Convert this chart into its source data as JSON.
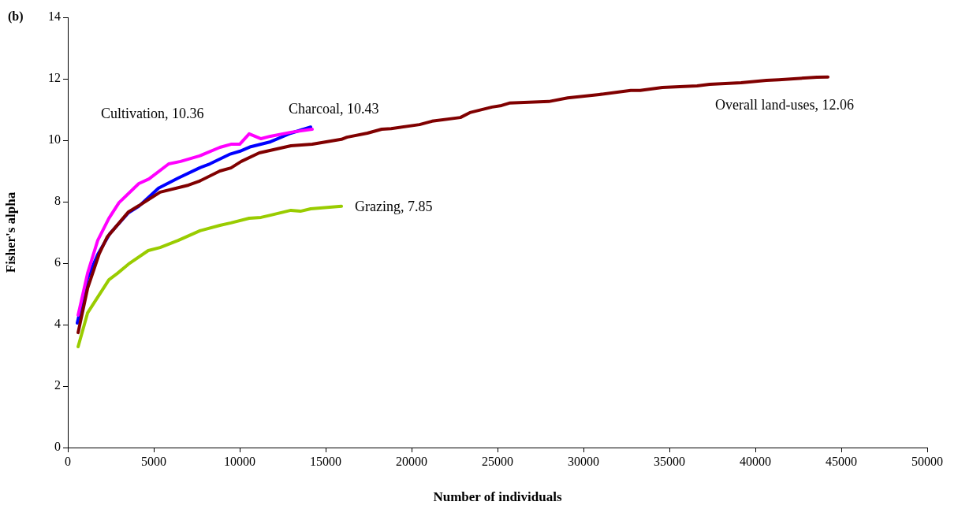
{
  "chart_data": {
    "type": "line",
    "title": "(b)",
    "xlabel": "Number of individuals",
    "ylabel": "Fisher's alpha",
    "xlim": [
      0,
      50000
    ],
    "xticks": [
      0,
      5000,
      10000,
      15000,
      20000,
      25000,
      30000,
      35000,
      40000,
      45000,
      50000
    ],
    "ylim": [
      0,
      14
    ],
    "yticks": [
      0,
      2,
      4,
      6,
      8,
      10,
      12,
      14
    ],
    "grid": false,
    "legend": false,
    "line_style": "solid",
    "series": [
      {
        "name": "Overall land-uses, 12.06",
        "color": "#800000",
        "x": [
          600,
          1150,
          1830,
          2290,
          3530,
          4130,
          5370,
          7020,
          7660,
          8850,
          9490,
          10090,
          11140,
          12980,
          14220,
          15920,
          16240,
          17430,
          18260,
          18810,
          20460,
          21190,
          22840,
          23390,
          24680,
          25230,
          25690,
          27980,
          29080,
          30920,
          32750,
          33300,
          34590,
          36610,
          37340,
          39170,
          40640,
          41370,
          43580,
          44220
        ],
        "values": [
          3.74,
          5.18,
          6.31,
          6.85,
          7.67,
          7.87,
          8.31,
          8.54,
          8.67,
          9.0,
          9.1,
          9.31,
          9.59,
          9.82,
          9.87,
          10.03,
          10.1,
          10.23,
          10.36,
          10.38,
          10.51,
          10.62,
          10.74,
          10.9,
          11.08,
          11.13,
          11.21,
          11.26,
          11.38,
          11.49,
          11.62,
          11.62,
          11.72,
          11.77,
          11.82,
          11.87,
          11.95,
          11.97,
          12.05,
          12.06
        ]
      },
      {
        "name": "Grazing, 7.85",
        "color": "#99cc00",
        "x": [
          600,
          1150,
          2390,
          2890,
          3530,
          4680,
          5370,
          6420,
          7660,
          8850,
          9490,
          10550,
          11240,
          11790,
          12980,
          13530,
          14130,
          15920
        ],
        "values": [
          3.28,
          4.38,
          5.46,
          5.67,
          5.97,
          6.41,
          6.51,
          6.74,
          7.05,
          7.23,
          7.31,
          7.46,
          7.49,
          7.56,
          7.72,
          7.69,
          7.77,
          7.85
        ]
      },
      {
        "name": "Cultivation, 10.36",
        "color": "#ff00ff",
        "x": [
          600,
          1150,
          1740,
          2390,
          2980,
          4130,
          4720,
          5870,
          6560,
          7660,
          8850,
          9490,
          10000,
          10550,
          11240,
          11790,
          12980,
          14220
        ],
        "values": [
          4.31,
          5.67,
          6.74,
          7.46,
          7.97,
          8.59,
          8.74,
          9.23,
          9.31,
          9.49,
          9.77,
          9.87,
          9.87,
          10.21,
          10.05,
          10.13,
          10.26,
          10.36
        ]
      },
      {
        "name": "Charcoal, 10.43",
        "color": "#0000ff",
        "x": [
          550,
          1150,
          1740,
          2430,
          3530,
          4130,
          5280,
          6420,
          7660,
          8260,
          9400,
          10000,
          10640,
          11790,
          12980,
          14130
        ],
        "values": [
          4.05,
          5.51,
          6.28,
          6.95,
          7.64,
          7.85,
          8.44,
          8.77,
          9.1,
          9.23,
          9.54,
          9.64,
          9.79,
          9.95,
          10.23,
          10.43
        ]
      }
    ]
  }
}
